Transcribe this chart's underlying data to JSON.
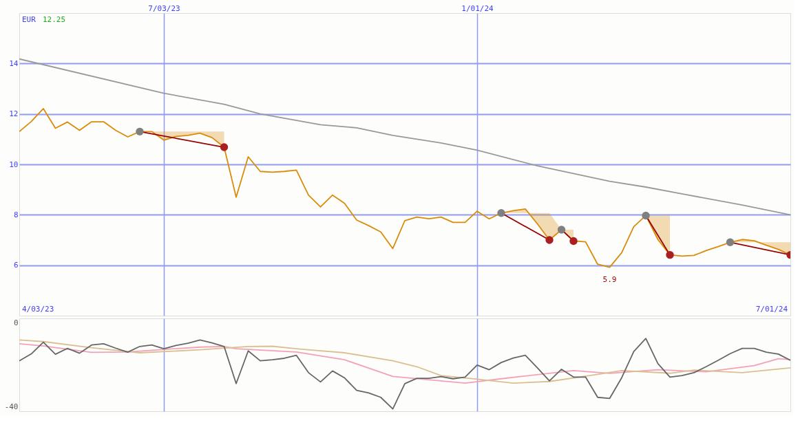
{
  "chart_data": [
    {
      "type": "line",
      "ylabel": "EUR",
      "annotations": [
        "12.25",
        "4/03/23",
        "7/01/24",
        {
          "text": "5.9",
          "x": "2024-03-18",
          "y": 5.9
        }
      ],
      "x": [
        "2023-04-10",
        "2023-04-17",
        "2023-04-24",
        "2023-05-01",
        "2023-05-08",
        "2023-05-15",
        "2023-05-22",
        "2023-05-29",
        "2023-06-05",
        "2023-06-12",
        "2023-06-19",
        "2023-06-26",
        "2023-07-03",
        "2023-07-10",
        "2023-07-17",
        "2023-07-24",
        "2023-07-31",
        "2023-08-07",
        "2023-08-14",
        "2023-08-21",
        "2023-08-28",
        "2023-09-04",
        "2023-09-11",
        "2023-09-18",
        "2023-09-25",
        "2023-10-02",
        "2023-10-09",
        "2023-10-16",
        "2023-10-23",
        "2023-10-30",
        "2023-11-06",
        "2023-11-13",
        "2023-11-20",
        "2023-11-27",
        "2023-12-04",
        "2023-12-11",
        "2023-12-18",
        "2023-12-25",
        "2024-01-01",
        "2024-01-08",
        "2024-01-15",
        "2024-01-22",
        "2024-01-29",
        "2024-02-05",
        "2024-02-12",
        "2024-02-19",
        "2024-02-26",
        "2024-03-04",
        "2024-03-11",
        "2024-03-18",
        "2024-03-25",
        "2024-04-01",
        "2024-04-08",
        "2024-04-15",
        "2024-04-22",
        "2024-04-29",
        "2024-05-06",
        "2024-05-13",
        "2024-05-20",
        "2024-05-27",
        "2024-06-03",
        "2024-06-10",
        "2024-06-17",
        "2024-06-24",
        "2024-07-01"
      ],
      "xlim": [
        "2023-04-10",
        "2024-07-01"
      ],
      "xticks": [
        {
          "value": "2023-07-03",
          "label": "7/03/23"
        },
        {
          "value": "2024-01-01",
          "label": "1/01/24"
        }
      ],
      "ylim": [
        4,
        16
      ],
      "yticks": [
        6,
        8,
        10,
        12,
        14
      ],
      "grid": true,
      "series": [
        {
          "color": "#999999",
          "x": [
            "2023-04-10",
            "2023-07-03",
            "2023-08-07",
            "2023-08-28",
            "2023-10-02",
            "2023-10-23",
            "2023-11-13",
            "2023-12-11",
            "2024-01-01",
            "2024-02-05",
            "2024-03-18",
            "2024-04-08",
            "2024-04-29",
            "2024-06-03",
            "2024-07-01"
          ],
          "values": [
            14.18,
            12.82,
            12.38,
            12.0,
            11.57,
            11.45,
            11.15,
            10.85,
            10.56,
            9.94,
            9.33,
            9.1,
            8.83,
            8.39,
            8.0
          ]
        },
        {
          "color": "#d98c0a",
          "upper": [
            null,
            null,
            null,
            null,
            null,
            null,
            null,
            null,
            null,
            null,
            11.3,
            11.3,
            11.3,
            11.3,
            11.3,
            11.3,
            11.3,
            11.3,
            null,
            null,
            null,
            null,
            null,
            null,
            null,
            null,
            null,
            null,
            null,
            null,
            null,
            null,
            null,
            null,
            null,
            null,
            null,
            null,
            null,
            null,
            8.07,
            8.07,
            8.07,
            8.07,
            8.07,
            7.41,
            7.41,
            null,
            null,
            null,
            null,
            null,
            7.97,
            7.97,
            7.97,
            null,
            null,
            null,
            null,
            6.91,
            6.91,
            6.91,
            6.91,
            6.91,
            6.91
          ],
          "lower": [
            null,
            null,
            null,
            null,
            null,
            null,
            null,
            null,
            null,
            null,
            11.3,
            11.3,
            10.96,
            11.11,
            11.15,
            11.24,
            11.06,
            10.68,
            null,
            null,
            null,
            null,
            null,
            null,
            null,
            null,
            null,
            null,
            null,
            null,
            null,
            null,
            null,
            null,
            null,
            null,
            null,
            null,
            null,
            null,
            8.07,
            8.16,
            8.23,
            7.64,
            7.0,
            7.41,
            6.96,
            null,
            null,
            null,
            null,
            null,
            7.97,
            7.02,
            6.41,
            null,
            null,
            null,
            null,
            6.91,
            7.02,
            6.97,
            6.79,
            6.63,
            6.41
          ],
          "values": [
            11.3,
            11.7,
            12.21,
            11.43,
            11.68,
            11.35,
            11.69,
            11.69,
            11.35,
            11.09,
            11.3,
            11.3,
            10.96,
            11.11,
            11.15,
            11.24,
            11.06,
            10.68,
            8.7,
            10.3,
            9.72,
            9.69,
            9.72,
            9.77,
            8.78,
            8.31,
            8.78,
            8.45,
            7.79,
            7.57,
            7.32,
            6.66,
            7.77,
            7.91,
            7.84,
            7.91,
            7.7,
            7.7,
            8.14,
            7.84,
            8.07,
            8.16,
            8.23,
            7.64,
            7.0,
            7.41,
            6.96,
            6.93,
            6.04,
            5.92,
            6.5,
            7.53,
            7.97,
            7.02,
            6.41,
            6.36,
            6.39,
            6.58,
            6.74,
            6.91,
            7.02,
            6.97,
            6.79,
            6.63,
            6.41
          ]
        },
        {
          "color": "#990000",
          "marker": "circle",
          "colors": [
            "#808080",
            "#aa2020"
          ],
          "x": [
            "2023-06-19",
            "2023-08-07"
          ],
          "values": [
            11.3,
            10.68
          ]
        },
        {
          "color": "#990000",
          "marker": "circle",
          "colors": [
            "#808080",
            "#aa2020"
          ],
          "x": [
            "2024-01-15",
            "2024-02-12"
          ],
          "values": [
            8.07,
            7.0
          ]
        },
        {
          "color": "#990000",
          "marker": "circle",
          "colors": [
            "#808080",
            "#aa2020"
          ],
          "x": [
            "2024-02-19",
            "2024-02-26"
          ],
          "values": [
            7.41,
            6.96
          ]
        },
        {
          "color": "#990000",
          "marker": "circle",
          "colors": [
            "#808080",
            "#aa2020"
          ],
          "x": [
            "2024-04-08",
            "2024-04-22"
          ],
          "values": [
            7.97,
            6.41
          ]
        },
        {
          "color": "#990000",
          "marker": "circle",
          "colors": [
            "#808080",
            "#aa2020"
          ],
          "x": [
            "2024-05-27",
            "2024-07-01"
          ],
          "values": [
            6.91,
            6.41
          ]
        }
      ]
    },
    {
      "type": "line",
      "tick_labels": "y",
      "x": [
        "2023-04-10",
        "2023-04-17",
        "2023-04-24",
        "2023-05-01",
        "2023-05-08",
        "2023-05-15",
        "2023-05-22",
        "2023-05-29",
        "2023-06-05",
        "2023-06-12",
        "2023-06-19",
        "2023-06-26",
        "2023-07-03",
        "2023-07-10",
        "2023-07-17",
        "2023-07-24",
        "2023-07-31",
        "2023-08-07",
        "2023-08-14",
        "2023-08-21",
        "2023-08-28",
        "2023-09-04",
        "2023-09-11",
        "2023-09-18",
        "2023-09-25",
        "2023-10-02",
        "2023-10-09",
        "2023-10-16",
        "2023-10-23",
        "2023-10-30",
        "2023-11-06",
        "2023-11-13",
        "2023-11-20",
        "2023-11-27",
        "2023-12-04",
        "2023-12-11",
        "2023-12-18",
        "2023-12-25",
        "2024-01-01",
        "2024-01-08",
        "2024-01-15",
        "2024-01-22",
        "2024-01-29",
        "2024-02-05",
        "2024-02-12",
        "2024-02-19",
        "2024-02-26",
        "2024-03-04",
        "2024-03-11",
        "2024-03-18",
        "2024-03-25",
        "2024-04-01",
        "2024-04-08",
        "2024-04-15",
        "2024-04-22",
        "2024-04-29",
        "2024-05-06",
        "2024-05-13",
        "2024-05-20",
        "2024-05-27",
        "2024-06-03",
        "2024-06-10",
        "2024-06-17",
        "2024-06-24",
        "2024-07-01"
      ],
      "xlim": [
        "2023-04-10",
        "2024-07-01"
      ],
      "xticks": [
        {
          "value": "2023-07-03",
          "label": null
        },
        {
          "value": "2024-01-01",
          "label": null
        }
      ],
      "ylim": [
        -42,
        2
      ],
      "yticks": [
        0,
        -40
      ],
      "grid": "x",
      "series": [
        {
          "color": "#f4a0b8",
          "x": [
            "2023-04-10",
            "2023-04-24",
            "2023-05-22",
            "2023-06-12",
            "2023-07-03",
            "2023-07-24",
            "2023-08-07",
            "2023-08-14",
            "2023-09-18",
            "2023-10-16",
            "2023-11-13",
            "2023-12-25",
            "2024-01-15",
            "2024-02-26",
            "2024-03-18",
            "2024-04-15",
            "2024-05-13",
            "2024-06-10",
            "2024-06-24",
            "2024-07-01"
          ],
          "values": [
            -10.0,
            -11.1,
            -14.1,
            -13.9,
            -12.7,
            -11.6,
            -11.3,
            -12.4,
            -13.9,
            -17.6,
            -25.5,
            -28.7,
            -26.6,
            -22.7,
            -24.0,
            -22.3,
            -23.3,
            -20.4,
            -17.1,
            -17.5
          ]
        },
        {
          "color": "#d8c090",
          "x": [
            "2023-04-10",
            "2023-04-24",
            "2023-05-22",
            "2023-06-19",
            "2023-07-24",
            "2023-08-21",
            "2023-09-04",
            "2023-09-18",
            "2023-10-16",
            "2023-11-13",
            "2023-11-27",
            "2023-12-11",
            "2024-01-01",
            "2024-01-22",
            "2024-02-12",
            "2024-03-11",
            "2024-03-25",
            "2024-04-22",
            "2024-05-06",
            "2024-06-03",
            "2024-07-01"
          ],
          "values": [
            -8.2,
            -9.0,
            -11.9,
            -14.3,
            -12.9,
            -11.3,
            -11.2,
            -12.4,
            -14.3,
            -18.1,
            -20.9,
            -25.1,
            -26.8,
            -28.7,
            -27.9,
            -24.5,
            -22.7,
            -24.0,
            -22.5,
            -23.7,
            -21.4
          ]
        },
        {
          "color": "#666666",
          "values": [
            -18.1,
            -14.8,
            -9.3,
            -15.0,
            -12.2,
            -14.5,
            -10.6,
            -10.0,
            -12.1,
            -14.0,
            -11.3,
            -10.6,
            -12.4,
            -10.8,
            -9.8,
            -8.2,
            -9.6,
            -11.3,
            -28.9,
            -13.4,
            -18.1,
            -17.6,
            -16.9,
            -15.5,
            -23.7,
            -28.1,
            -22.9,
            -26.2,
            -32.1,
            -33.3,
            -35.4,
            -40.9,
            -28.9,
            -26.4,
            -26.4,
            -25.6,
            -26.6,
            -25.8,
            -20.1,
            -22.3,
            -18.9,
            -16.8,
            -15.5,
            -21.4,
            -27.6,
            -22.1,
            -25.8,
            -25.8,
            -35.4,
            -35.9,
            -26.1,
            -13.7,
            -7.5,
            -19.4,
            -25.8,
            -25.1,
            -23.7,
            -20.9,
            -17.9,
            -14.7,
            -12.2,
            -12.2,
            -14.0,
            -14.9,
            -17.9
          ]
        }
      ]
    }
  ]
}
